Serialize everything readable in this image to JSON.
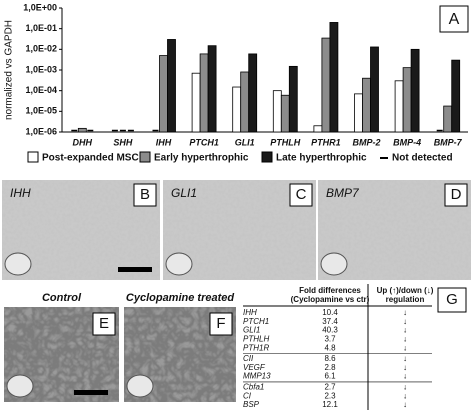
{
  "chart_data": {
    "type": "bar",
    "log_scale": true,
    "y_label": "normalized vs GAPDH",
    "panel_letter": "A",
    "categories": [
      "DHH",
      "SHH",
      "IHH",
      "PTCH1",
      "GLI1",
      "PTHLH",
      "PTHR1",
      "BMP-2",
      "BMP-4",
      "BMP-7"
    ],
    "series": [
      {
        "name": "Post-expanded MSC",
        "color": "#ffffff",
        "values": [
          null,
          null,
          null,
          0.0007,
          0.00015,
          0.0001,
          2e-06,
          7e-05,
          0.0003,
          null
        ]
      },
      {
        "name": "Early hyperthrophic",
        "color": "#8c8c8c",
        "values": [
          1.5e-06,
          null,
          0.005,
          0.006,
          0.0008,
          6e-05,
          0.035,
          0.0004,
          0.0013,
          1.8e-05
        ]
      },
      {
        "name": "Late hyperthrophic",
        "color": "#1a1a1a",
        "values": [
          null,
          null,
          0.03,
          0.015,
          0.006,
          0.0015,
          0.2,
          0.013,
          0.01,
          0.003
        ]
      }
    ],
    "not_detected": "Not detected",
    "ylim": [
      1e-06,
      1
    ],
    "yticks": [
      {
        "value": 1,
        "label": "1,0E+00"
      },
      {
        "value": 0.1,
        "label": "1,0E-01"
      },
      {
        "value": 0.01,
        "label": "1,0E-02"
      },
      {
        "value": 0.001,
        "label": "1,0E-03"
      },
      {
        "value": 0.0001,
        "label": "1,0E-04"
      },
      {
        "value": 1e-05,
        "label": "1,0E-05"
      },
      {
        "value": 1e-06,
        "label": "1,0E-06"
      }
    ]
  },
  "panels": [
    {
      "letter": "B",
      "label": "IHH"
    },
    {
      "letter": "C",
      "label": "GLI1"
    },
    {
      "letter": "D",
      "label": "BMP7"
    },
    {
      "letter": "E",
      "label": "Control"
    },
    {
      "letter": "F",
      "label": "Cyclopamine treated"
    }
  ],
  "table": {
    "letter": "G",
    "header": {
      "fold": "Fold differences",
      "fold_sub": "(Cyclopamine vs ctr)",
      "regulation": "Up (↑)/down (↓)",
      "regulation_sub": "regulation"
    },
    "groups": [
      [
        [
          "IHH",
          10.4,
          "↓"
        ],
        [
          "PTCH1",
          37.4,
          "↓"
        ],
        [
          "GLI1",
          40.3,
          "↓"
        ],
        [
          "PTHLH",
          3.7,
          "↓"
        ],
        [
          "PTH1R",
          4.8,
          "↓"
        ]
      ],
      [
        [
          "CII",
          8.6,
          "↓"
        ],
        [
          "VEGF",
          2.8,
          "↓"
        ],
        [
          "MMP13",
          6.1,
          "↓"
        ]
      ],
      [
        [
          "Cbfa1",
          2.7,
          "↓"
        ],
        [
          "CI",
          2.3,
          "↓"
        ],
        [
          "BSP",
          12.1,
          "↓"
        ]
      ]
    ]
  }
}
